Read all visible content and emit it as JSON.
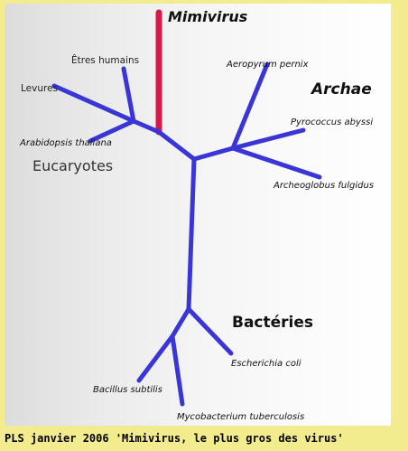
{
  "title": "Mimivirus",
  "groups": {
    "eucaryotes": "Eucaryotes",
    "archae": "Archae",
    "bacteries": "Bactéries"
  },
  "leaves": {
    "etres_humains": "Êtres humains",
    "levures": "Levures",
    "arabidopsis": "Arabidopsis thaliana",
    "aeropyrum": "Aeropyrum pernix",
    "pyrococcus": "Pyrococcus abyssi",
    "archeoglobus": "Archeoglobus fulgidus",
    "escherichia": "Escherichia coli",
    "bacillus": "Bacillus subtilis",
    "mycobacterium": "Mycobacterium tuberculosis"
  },
  "caption": "PLS janvier 2006 'Mimivirus, le plus gros des virus'",
  "colors": {
    "branch": "#3a35d6",
    "mimivirus_branch": "#d8174a",
    "background": "#f3ec8e"
  }
}
